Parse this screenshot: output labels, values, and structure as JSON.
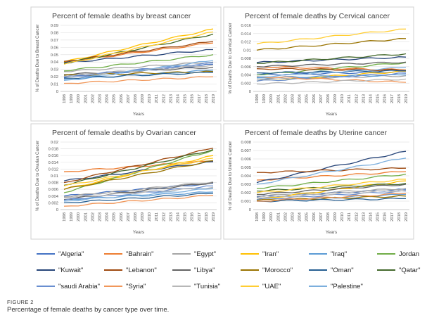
{
  "figure": {
    "label": "FIGURE 2",
    "caption": "Percentage of female deaths by cancer type over time."
  },
  "series": [
    {
      "name": "\"Algeria\"",
      "color": "#4472c4"
    },
    {
      "name": "\"Bahrain\"",
      "color": "#ed7d31"
    },
    {
      "name": "\"Egypt\"",
      "color": "#a5a5a5"
    },
    {
      "name": "\"Iran\"",
      "color": "#ffc000"
    },
    {
      "name": "\"Iraq\"",
      "color": "#5b9bd5"
    },
    {
      "name": "Jordan",
      "color": "#70ad47"
    },
    {
      "name": "\"Kuwait\"",
      "color": "#264478"
    },
    {
      "name": "\"Lebanon\"",
      "color": "#9e480e"
    },
    {
      "name": "\"Libya\"",
      "color": "#636363"
    },
    {
      "name": "\"Morocco\"",
      "color": "#997300"
    },
    {
      "name": "\"Oman\"",
      "color": "#255e91"
    },
    {
      "name": "\"Qatar\"",
      "color": "#43682b"
    },
    {
      "name": "\"saudi Arabia\"",
      "color": "#698ed0"
    },
    {
      "name": "\"Syria\"",
      "color": "#f1975a"
    },
    {
      "name": "\"Tunisia\"",
      "color": "#b7b7b7"
    },
    {
      "name": "\"UAE\"",
      "color": "#ffcd33"
    },
    {
      "name": "\"Palestine\"",
      "color": "#7cafdd"
    }
  ],
  "chart_data": [
    {
      "type": "line",
      "title": "Percent of female deaths by breast cancer",
      "xlabel": "Years",
      "ylabel": "% of Deaths Due to Breast Cancer",
      "ylim": [
        0,
        0.09
      ],
      "yticks": [
        "0",
        "0.01",
        "0.02",
        "0.03",
        "0.04",
        "0.05",
        "0.06",
        "0.07",
        "0.08",
        "0.09"
      ],
      "x": [
        "1998",
        "1999",
        "2000",
        "2001",
        "2002",
        "2003",
        "2004",
        "2005",
        "2006",
        "2007",
        "2008",
        "2009",
        "2010",
        "2011",
        "2012",
        "2013",
        "2014",
        "2015",
        "2016",
        "2017",
        "2018",
        "2019"
      ],
      "series": [
        {
          "name": "\"Algeria\"",
          "start": 0.019,
          "end": 0.037
        },
        {
          "name": "\"Bahrain\"",
          "start": 0.04,
          "end": 0.066
        },
        {
          "name": "\"Egypt\"",
          "start": 0.027,
          "end": 0.04
        },
        {
          "name": "\"Iran\"",
          "start": 0.04,
          "end": 0.085
        },
        {
          "name": "\"Iraq\"",
          "start": 0.016,
          "end": 0.029
        },
        {
          "name": "Jordan",
          "start": 0.028,
          "end": 0.05
        },
        {
          "name": "\"Kuwait\"",
          "start": 0.039,
          "end": 0.057
        },
        {
          "name": "\"Lebanon\"",
          "start": 0.041,
          "end": 0.068
        },
        {
          "name": "\"Libya\"",
          "start": 0.023,
          "end": 0.033
        },
        {
          "name": "\"Morocco\"",
          "start": 0.022,
          "end": 0.027
        },
        {
          "name": "\"Oman\"",
          "start": 0.018,
          "end": 0.026
        },
        {
          "name": "\"Qatar\"",
          "start": 0.038,
          "end": 0.078
        },
        {
          "name": "\"saudi Arabia\"",
          "start": 0.02,
          "end": 0.039
        },
        {
          "name": "\"Syria\"",
          "start": 0.011,
          "end": 0.02
        },
        {
          "name": "\"Tunisia\"",
          "start": 0.021,
          "end": 0.036
        },
        {
          "name": "\"UAE\"",
          "start": 0.037,
          "end": 0.081
        },
        {
          "name": "\"Palestine\"",
          "start": 0.015,
          "end": 0.042
        }
      ]
    },
    {
      "type": "line",
      "title": "Percent of female deaths by Cervical cancer",
      "xlabel": "Years",
      "ylabel": "% of Deaths Due to Cervical Cancer",
      "ylim": [
        0,
        0.016
      ],
      "yticks": [
        "0",
        "0.002",
        "0.004",
        "0.006",
        "0.008",
        "0.01",
        "0.012",
        "0.014",
        "0.016"
      ],
      "x": [
        "1998",
        "1999",
        "2000",
        "2001",
        "2002",
        "2003",
        "2004",
        "2005",
        "2006",
        "2007",
        "2008",
        "2009",
        "2010",
        "2011",
        "2012",
        "2013",
        "2014",
        "2015",
        "2016",
        "2017",
        "2018",
        "2019"
      ],
      "series": [
        {
          "name": "\"Algeria\"",
          "start": 0.004,
          "end": 0.0048
        },
        {
          "name": "\"Bahrain\"",
          "start": 0.006,
          "end": 0.0052
        },
        {
          "name": "\"Egypt\"",
          "start": 0.003,
          "end": 0.0038
        },
        {
          "name": "\"Iran\"",
          "start": 0.0025,
          "end": 0.0049
        },
        {
          "name": "\"Iraq\"",
          "start": 0.0033,
          "end": 0.004
        },
        {
          "name": "Jordan",
          "start": 0.004,
          "end": 0.007
        },
        {
          "name": "\"Kuwait\"",
          "start": 0.007,
          "end": 0.0083
        },
        {
          "name": "\"Lebanon\"",
          "start": 0.0055,
          "end": 0.0051
        },
        {
          "name": "\"Libya\"",
          "start": 0.006,
          "end": 0.0071
        },
        {
          "name": "\"Morocco\"",
          "start": 0.01,
          "end": 0.0128
        },
        {
          "name": "\"Oman\"",
          "start": 0.0045,
          "end": 0.005
        },
        {
          "name": "\"Qatar\"",
          "start": 0.0068,
          "end": 0.0091
        },
        {
          "name": "\"saudi Arabia\"",
          "start": 0.0025,
          "end": 0.0044
        },
        {
          "name": "\"Syria\"",
          "start": 0.0036,
          "end": 0.0022
        },
        {
          "name": "\"Tunisia\"",
          "start": 0.0018,
          "end": 0.003
        },
        {
          "name": "\"UAE\"",
          "start": 0.0115,
          "end": 0.0151
        },
        {
          "name": "\"Palestine\"",
          "start": 0.0035,
          "end": 0.0058
        }
      ]
    },
    {
      "type": "line",
      "title": "Percent of female deaths by Ovarian cancer",
      "xlabel": "Years",
      "ylabel": "% of Deaths Due to Ovarian Cancer",
      "ylim": [
        0,
        0.02
      ],
      "yticks": [
        "0",
        "0.002",
        "0.004",
        "0.006",
        "0.008",
        "0.01",
        "0.012",
        "0.014",
        "0.016",
        "0.018",
        "0.02"
      ],
      "x": [
        "1998",
        "1999",
        "2000",
        "2001",
        "2002",
        "2003",
        "2004",
        "2005",
        "2006",
        "2007",
        "2008",
        "2009",
        "2010",
        "2011",
        "2012",
        "2013",
        "2014",
        "2015",
        "2016",
        "2017",
        "2018",
        "2019"
      ],
      "series": [
        {
          "name": "\"Algeria\"",
          "start": 0.004,
          "end": 0.0078
        },
        {
          "name": "\"Bahrain\"",
          "start": 0.0112,
          "end": 0.0144
        },
        {
          "name": "\"Egypt\"",
          "start": 0.0038,
          "end": 0.0082
        },
        {
          "name": "\"Iran\"",
          "start": 0.006,
          "end": 0.016
        },
        {
          "name": "\"Iraq\"",
          "start": 0.003,
          "end": 0.0052
        },
        {
          "name": "Jordan",
          "start": 0.005,
          "end": 0.0176
        },
        {
          "name": "\"Kuwait\"",
          "start": 0.0085,
          "end": 0.0142
        },
        {
          "name": "\"Lebanon\"",
          "start": 0.008,
          "end": 0.0182
        },
        {
          "name": "\"Libya\"",
          "start": 0.003,
          "end": 0.008
        },
        {
          "name": "\"Morocco\"",
          "start": 0.006,
          "end": 0.0145
        },
        {
          "name": "\"Oman\"",
          "start": 0.002,
          "end": 0.0048
        },
        {
          "name": "\"Qatar\"",
          "start": 0.0072,
          "end": 0.0178
        },
        {
          "name": "\"saudi Arabia\"",
          "start": 0.0028,
          "end": 0.007
        },
        {
          "name": "\"Syria\"",
          "start": 0.001,
          "end": 0.0042
        },
        {
          "name": "\"Tunisia\"",
          "start": 0.0035,
          "end": 0.0066
        },
        {
          "name": "\"UAE\"",
          "start": 0.007,
          "end": 0.0152
        },
        {
          "name": "\"Palestine\"",
          "start": 0.0025,
          "end": 0.0062
        }
      ]
    },
    {
      "type": "line",
      "title": "Percent of female deaths by Uterine cancer",
      "xlabel": "Years",
      "ylabel": "% of Deaths Due to Uterine Cancer",
      "ylim": [
        0,
        0.008
      ],
      "yticks": [
        "0",
        "0.001",
        "0.002",
        "0.003",
        "0.004",
        "0.005",
        "0.006",
        "0.007",
        "0.008"
      ],
      "x": [
        "1998",
        "1999",
        "2000",
        "2001",
        "2002",
        "2003",
        "2004",
        "2005",
        "2006",
        "2007",
        "2008",
        "2009",
        "2010",
        "2011",
        "2012",
        "2013",
        "2014",
        "2015",
        "2016",
        "2017",
        "2018",
        "2019"
      ],
      "series": [
        {
          "name": "\"Algeria\"",
          "start": 0.0015,
          "end": 0.0024
        },
        {
          "name": "\"Bahrain\"",
          "start": 0.0035,
          "end": 0.0045
        },
        {
          "name": "\"Egypt\"",
          "start": 0.0016,
          "end": 0.0025
        },
        {
          "name": "\"Iran\"",
          "start": 0.0012,
          "end": 0.0034
        },
        {
          "name": "\"Iraq\"",
          "start": 0.001,
          "end": 0.0018
        },
        {
          "name": "Jordan",
          "start": 0.0025,
          "end": 0.0042
        },
        {
          "name": "\"Kuwait\"",
          "start": 0.0032,
          "end": 0.0069
        },
        {
          "name": "\"Lebanon\"",
          "start": 0.0044,
          "end": 0.0049
        },
        {
          "name": "\"Libya\"",
          "start": 0.0018,
          "end": 0.003
        },
        {
          "name": "\"Morocco\"",
          "start": 0.0011,
          "end": 0.0016
        },
        {
          "name": "\"Oman\"",
          "start": 0.001,
          "end": 0.0013
        },
        {
          "name": "\"Qatar\"",
          "start": 0.0022,
          "end": 0.0031
        },
        {
          "name": "\"saudi Arabia\"",
          "start": 0.0012,
          "end": 0.0022
        },
        {
          "name": "\"Syria\"",
          "start": 0.001,
          "end": 0.0019
        },
        {
          "name": "\"Tunisia\"",
          "start": 0.0014,
          "end": 0.0023
        },
        {
          "name": "\"UAE\"",
          "start": 0.002,
          "end": 0.0036
        },
        {
          "name": "\"Palestine\"",
          "start": 0.003,
          "end": 0.0061
        }
      ]
    }
  ]
}
